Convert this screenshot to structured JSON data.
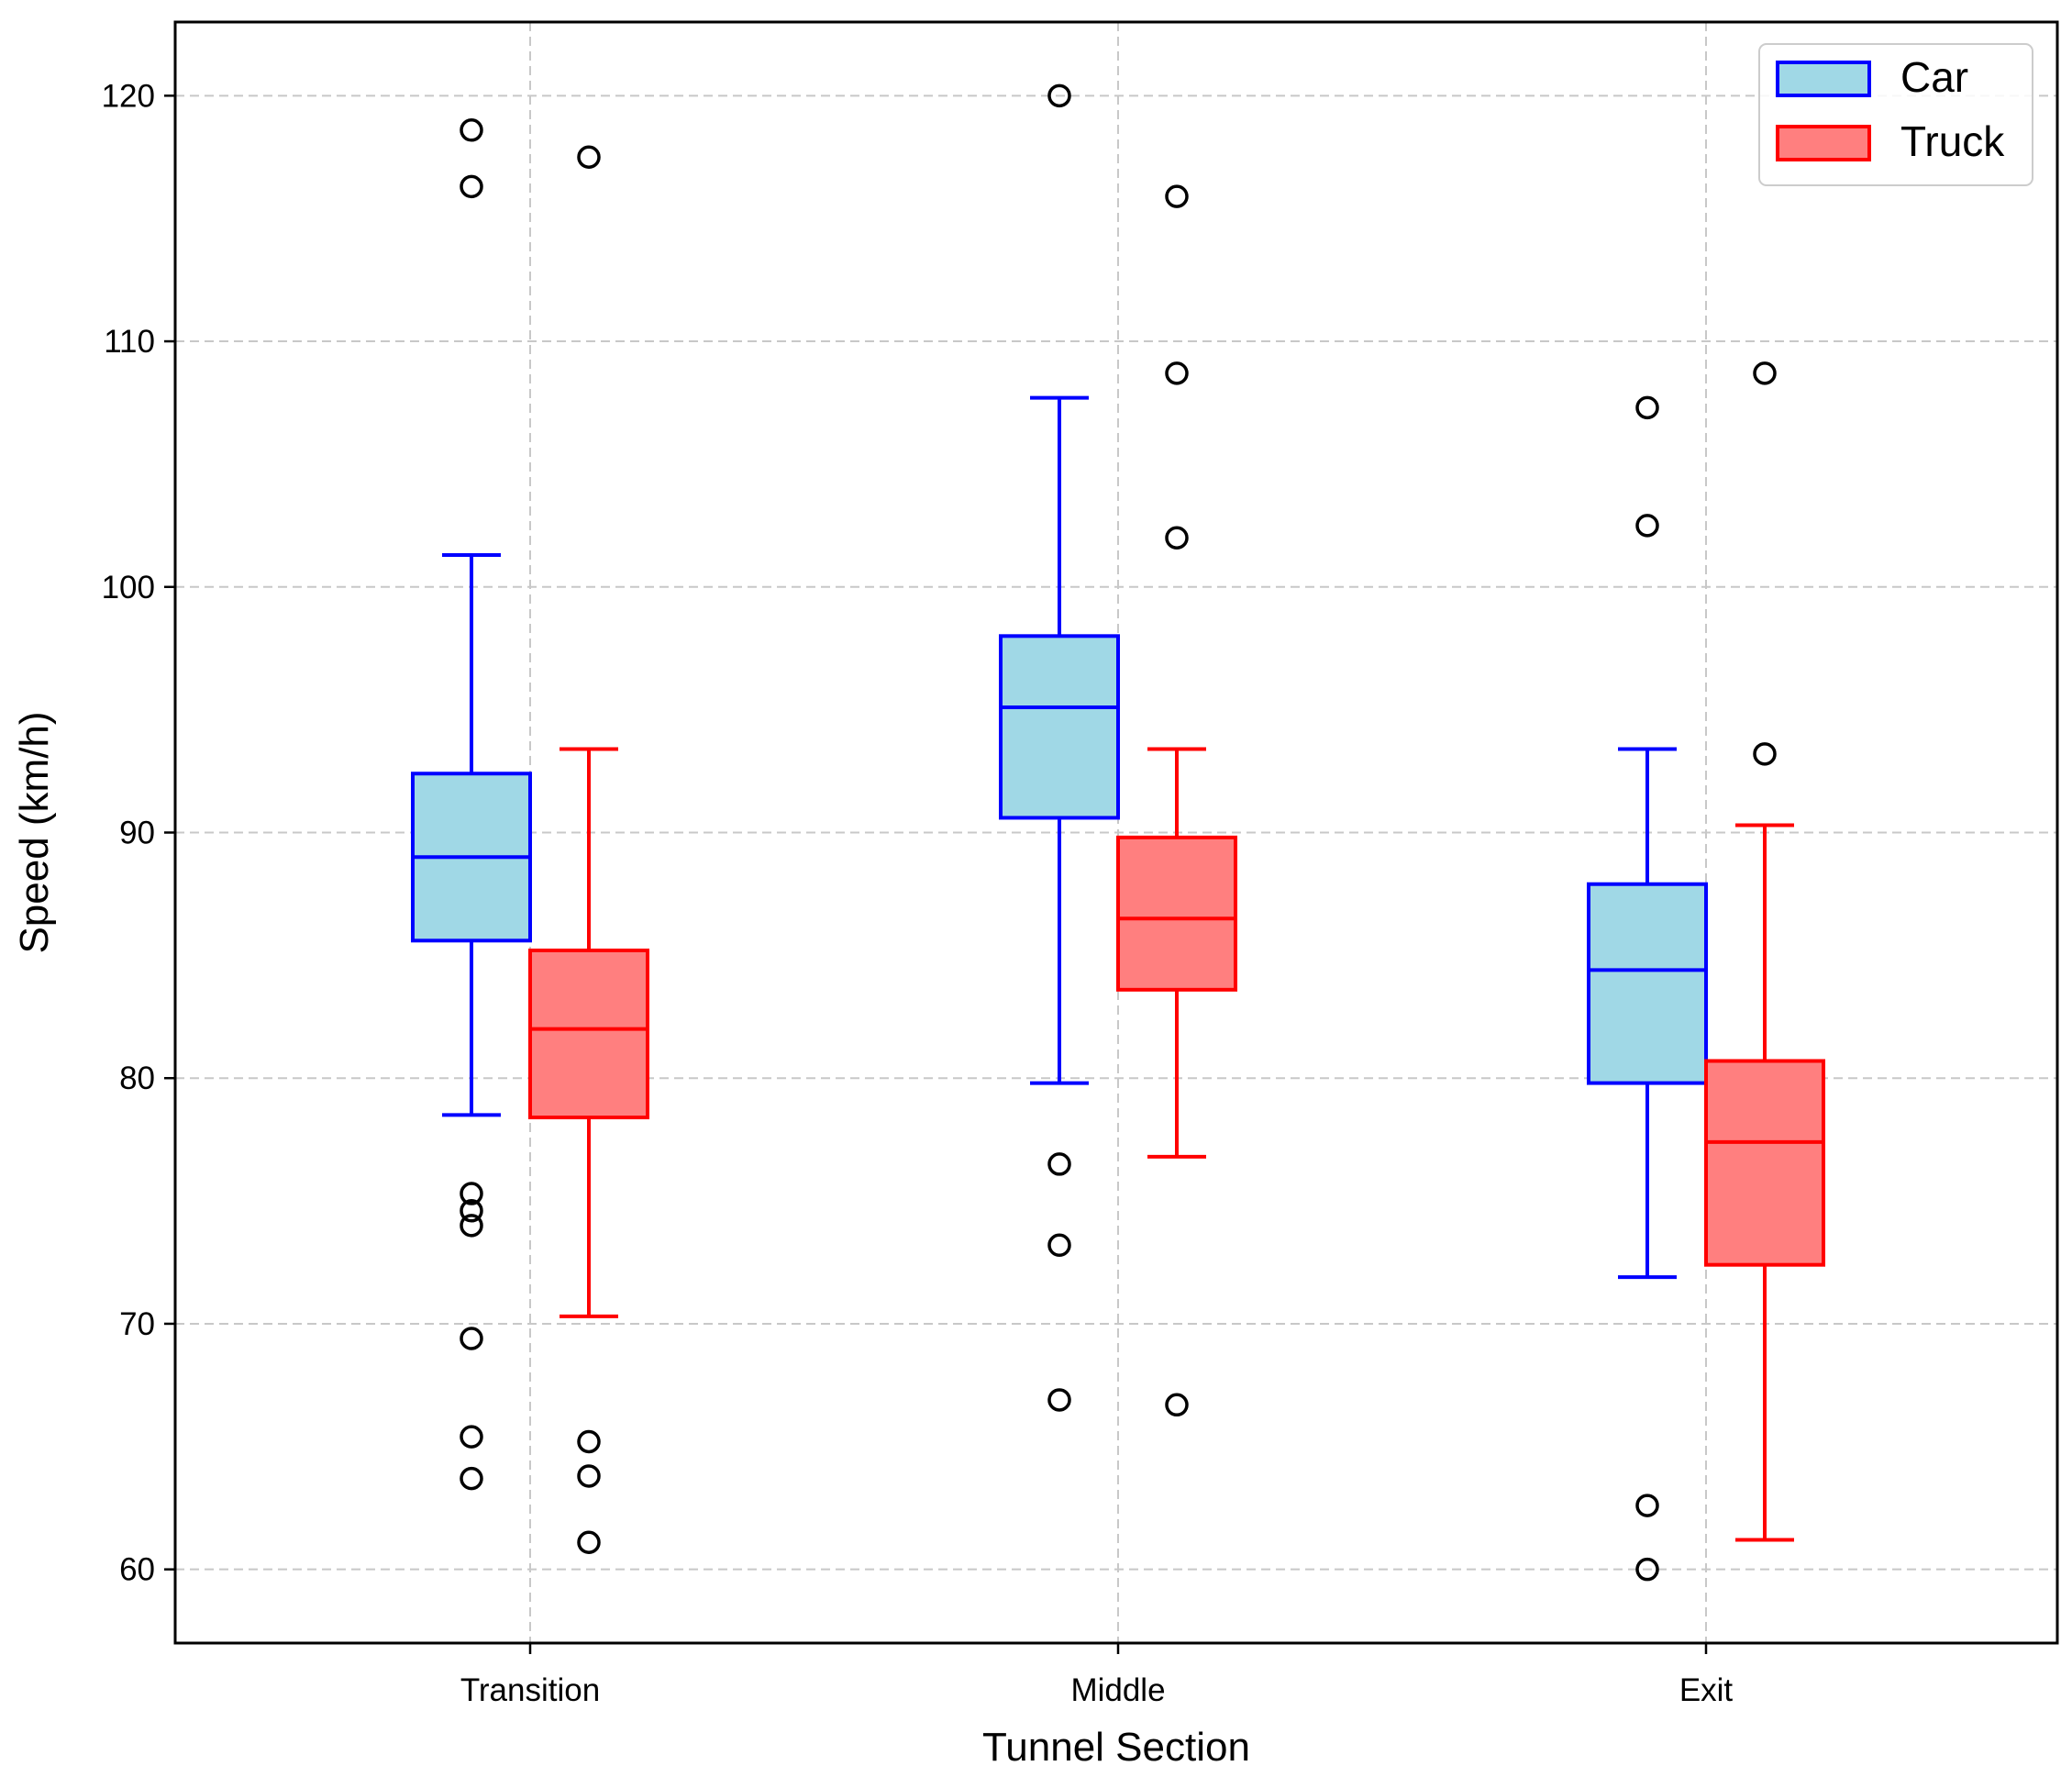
{
  "chart_data": {
    "type": "box",
    "xlabel": "Tunnel Section",
    "ylabel": "Speed (km/h)",
    "ylim": [
      57,
      123
    ],
    "yticks": [
      60,
      70,
      80,
      90,
      100,
      110,
      120
    ],
    "grid": true,
    "legend_position": "top-right",
    "categories": [
      "Transition",
      "Middle",
      "Exit"
    ],
    "series": [
      {
        "name": "Car",
        "fill": "#a0d8e6",
        "edge": "#0000ff",
        "boxes": [
          {
            "whisker_low": 78.5,
            "q1": 85.6,
            "median": 89.0,
            "q3": 92.4,
            "whisker_high": 101.3,
            "outliers": [
              118.6,
              116.3,
              75.3,
              74.6,
              74.0,
              69.4,
              65.4,
              63.7
            ]
          },
          {
            "whisker_low": 79.8,
            "q1": 90.6,
            "median": 95.1,
            "q3": 98.0,
            "whisker_high": 107.7,
            "outliers": [
              120.0,
              76.5,
              73.2,
              66.9
            ]
          },
          {
            "whisker_low": 71.9,
            "q1": 79.8,
            "median": 84.4,
            "q3": 87.9,
            "whisker_high": 93.4,
            "outliers": [
              107.3,
              102.5,
              62.6,
              60.0
            ]
          }
        ]
      },
      {
        "name": "Truck",
        "fill": "#ff7f7f",
        "edge": "#ff0000",
        "boxes": [
          {
            "whisker_low": 70.3,
            "q1": 78.4,
            "median": 82.0,
            "q3": 85.2,
            "whisker_high": 93.4,
            "outliers": [
              117.5,
              65.2,
              63.8,
              61.1
            ]
          },
          {
            "whisker_low": 76.8,
            "q1": 83.6,
            "median": 86.5,
            "q3": 89.8,
            "whisker_high": 93.4,
            "outliers": [
              115.9,
              108.7,
              102.0,
              66.7
            ]
          },
          {
            "whisker_low": 61.2,
            "q1": 72.4,
            "median": 77.4,
            "q3": 80.7,
            "whisker_high": 90.3,
            "outliers": [
              108.7,
              93.2
            ]
          }
        ]
      }
    ]
  }
}
